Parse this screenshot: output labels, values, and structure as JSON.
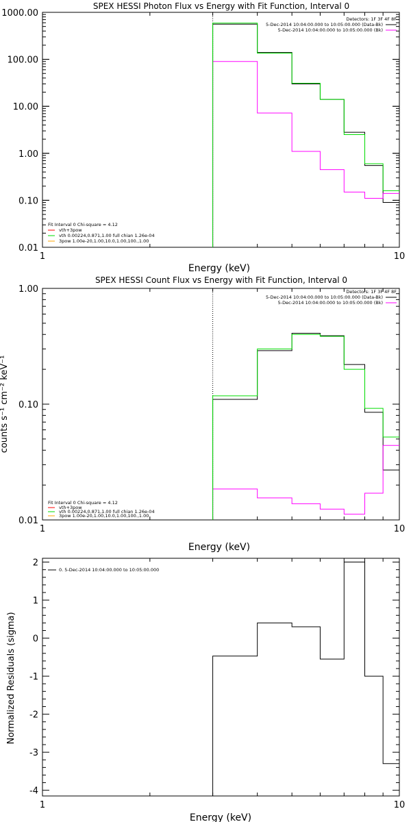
{
  "chart_data": [
    {
      "type": "line",
      "title": "SPEX HESSI Photon Flux vs Energy with Fit Function, Interval 0",
      "xlabel": "Energy (keV)",
      "ylabel": "",
      "xscale": "log",
      "yscale": "log",
      "xlim": [
        1,
        10
      ],
      "ylim": [
        0.01,
        1000
      ],
      "xticks": [
        "1",
        "10"
      ],
      "yticks": [
        "0.01",
        "0.10",
        "1.00",
        "10.00",
        "100.00",
        "1000.00"
      ],
      "vline_x": 3.0,
      "bin_edges": [
        3,
        4,
        5,
        6,
        7,
        8,
        9,
        10
      ],
      "series": [
        {
          "name": "5-Dec-2014 10:04:00.000 to 10:05:00.000 (Data-Bk)",
          "color": "#000000",
          "values": [
            560,
            140,
            30,
            14,
            2.8,
            0.55,
            0.09
          ]
        },
        {
          "name": "5-Dec-2014 10:04:00.000 to 10:05:00.000 (Bk)",
          "color": "#ff00ff",
          "values": [
            90,
            7.2,
            1.1,
            0.45,
            0.15,
            0.11,
            0.14
          ]
        },
        {
          "name": "",
          "color": "#00dd00",
          "values": [
            590,
            135,
            31,
            14,
            2.5,
            0.6,
            0.16
          ]
        }
      ],
      "top_legend": {
        "header": "Detectors: 1F 3F 4F 8F",
        "items": [
          {
            "text": "5-Dec-2014 10:04:00.000 to 10:05:00.000 (Data-Bk)",
            "color": "#000000"
          },
          {
            "text": "5-Dec-2014 10:04:00.000 to 10:05:00.000 (Bk)",
            "color": "#ff00ff"
          }
        ]
      },
      "fit_legend": {
        "header": "Fit Interval 0   Chi-square = 4.12",
        "items": [
          {
            "text": "vth+3pow",
            "color": "#ff0000"
          },
          {
            "text": "vth 0.00224,0.871,1.00   full chian 1.26e-04",
            "color": "#00dd00"
          },
          {
            "text": "3pow 1.00e-20,1.00,10.0,1.00,100.,1.00",
            "color": "#ffa500"
          }
        ]
      }
    },
    {
      "type": "line",
      "title": "SPEX HESSI Count Flux vs Energy with Fit Function, Interval 0",
      "xlabel": "Energy (keV)",
      "ylabel": "counts s⁻¹ cm⁻² keV⁻¹",
      "xscale": "log",
      "yscale": "log",
      "xlim": [
        1,
        10
      ],
      "ylim": [
        0.01,
        1.0
      ],
      "xticks": [
        "1",
        "10"
      ],
      "yticks": [
        "0.01",
        "0.10",
        "1.00"
      ],
      "vline_x": 3.0,
      "bin_edges": [
        3,
        4,
        5,
        6,
        7,
        8,
        9,
        10
      ],
      "series": [
        {
          "name": "5-Dec-2014 10:04:00.000 to 10:05:00.000 (Data-Bk)",
          "color": "#000000",
          "values": [
            0.11,
            0.29,
            0.41,
            0.39,
            0.22,
            0.085,
            0.027
          ]
        },
        {
          "name": "5-Dec-2014 10:04:00.000 to 10:05:00.000 (Bk)",
          "color": "#ff00ff",
          "values": [
            0.0185,
            0.0155,
            0.0138,
            0.0124,
            0.0112,
            0.017,
            0.044
          ]
        },
        {
          "name": "",
          "color": "#00dd00",
          "values": [
            0.118,
            0.3,
            0.4,
            0.385,
            0.2,
            0.092,
            0.052
          ]
        }
      ],
      "top_legend": {
        "header": "Detectors: 1F 3F 4F 8F",
        "items": [
          {
            "text": "5-Dec-2014 10:04:00.000 to 10:05:00.000 (Data-Bk)",
            "color": "#000000"
          },
          {
            "text": "5-Dec-2014 10:04:00.000 to 10:05:00.000 (Bk)",
            "color": "#ff00ff"
          }
        ]
      },
      "fit_legend": {
        "header": "Fit Interval 0   Chi-square = 4.12",
        "items": [
          {
            "text": "vth+3pow",
            "color": "#ff0000"
          },
          {
            "text": "vth 0.00224,0.871,1.00   full chian 1.26e-04",
            "color": "#00dd00"
          },
          {
            "text": "3pow 1.00e-20,1.00,10.0,1.00,100.,1.00",
            "color": "#ffa500"
          }
        ]
      }
    },
    {
      "type": "line",
      "title": "",
      "xlabel": "Energy (keV)",
      "ylabel": "Normalized Residuals (sigma)",
      "xscale": "log",
      "yscale": "linear",
      "xlim": [
        1,
        10
      ],
      "ylim": [
        -4.15,
        2.1
      ],
      "xticks": [
        "1",
        "10"
      ],
      "yticks": [
        "2",
        "1",
        "0",
        "-1",
        "-2",
        "-3",
        "-4"
      ],
      "bin_edges": [
        3,
        4,
        5,
        6,
        7,
        8,
        9,
        10
      ],
      "series": [
        {
          "name": "0. 5-Dec-2014 10:04:00.000 to 10:05:00.000",
          "color": "#000000",
          "values": [
            -0.47,
            0.4,
            0.3,
            -0.55,
            2.0,
            -1.0,
            -3.3
          ]
        }
      ],
      "top_legend": {
        "items": [
          {
            "text": "0. 5-Dec-2014 10:04:00.000 to 10:05:00.000",
            "color": "#000000"
          }
        ]
      }
    }
  ]
}
